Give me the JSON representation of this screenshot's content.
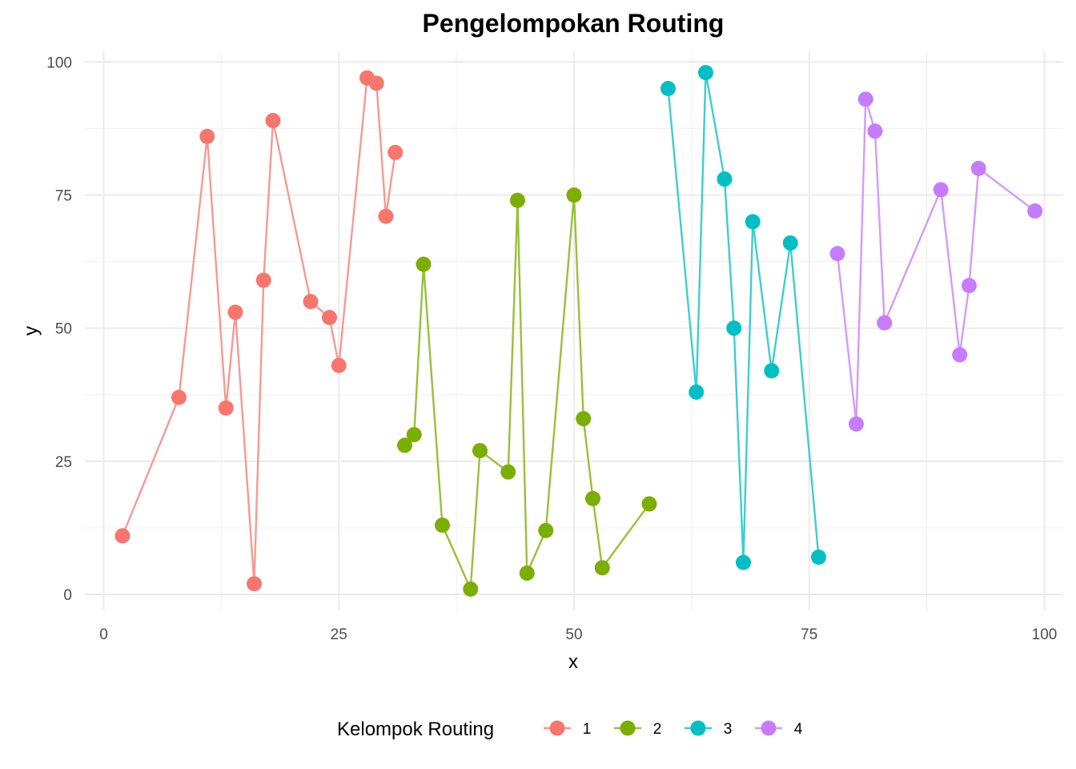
{
  "chart_data": {
    "type": "scatter",
    "title": "Pengelompokan Routing",
    "xlabel": "x",
    "ylabel": "y",
    "xlim": [
      -2,
      102
    ],
    "ylim": [
      -3,
      102
    ],
    "x_ticks": [
      0,
      25,
      50,
      75,
      100
    ],
    "y_ticks": [
      0,
      25,
      50,
      75,
      100
    ],
    "grid": true,
    "points_connected_by_lines": true,
    "legend": {
      "title": "Kelompok Routing",
      "placement": "bottom"
    },
    "series": [
      {
        "name": "1",
        "color": "#F8766D",
        "line_color": "#F59A93",
        "points": [
          [
            2,
            11
          ],
          [
            8,
            37
          ],
          [
            11,
            86
          ],
          [
            13,
            35
          ],
          [
            14,
            53
          ],
          [
            16,
            2
          ],
          [
            17,
            59
          ],
          [
            18,
            89
          ],
          [
            22,
            55
          ],
          [
            24,
            52
          ],
          [
            25,
            43
          ],
          [
            28,
            97
          ],
          [
            29,
            96
          ],
          [
            30,
            71
          ],
          [
            31,
            83
          ]
        ]
      },
      {
        "name": "2",
        "color": "#7CAE00",
        "line_color": "#98C03A",
        "points": [
          [
            32,
            28
          ],
          [
            33,
            30
          ],
          [
            34,
            62
          ],
          [
            36,
            13
          ],
          [
            39,
            1
          ],
          [
            40,
            27
          ],
          [
            43,
            23
          ],
          [
            44,
            74
          ],
          [
            45,
            4
          ],
          [
            47,
            12
          ],
          [
            50,
            75
          ],
          [
            51,
            33
          ],
          [
            52,
            18
          ],
          [
            53,
            5
          ],
          [
            58,
            17
          ]
        ]
      },
      {
        "name": "3",
        "color": "#00BFC4",
        "line_color": "#3ECDD0",
        "points": [
          [
            60,
            95
          ],
          [
            63,
            38
          ],
          [
            64,
            98
          ],
          [
            66,
            78
          ],
          [
            67,
            50
          ],
          [
            68,
            6
          ],
          [
            69,
            70
          ],
          [
            71,
            42
          ],
          [
            73,
            66
          ],
          [
            76,
            7
          ]
        ]
      },
      {
        "name": "4",
        "color": "#C77CFF",
        "line_color": "#D49AFF",
        "points": [
          [
            78,
            64
          ],
          [
            80,
            32
          ],
          [
            81,
            93
          ],
          [
            82,
            87
          ],
          [
            83,
            51
          ],
          [
            89,
            76
          ],
          [
            91,
            45
          ],
          [
            92,
            58
          ],
          [
            93,
            80
          ],
          [
            99,
            72
          ]
        ]
      }
    ]
  }
}
